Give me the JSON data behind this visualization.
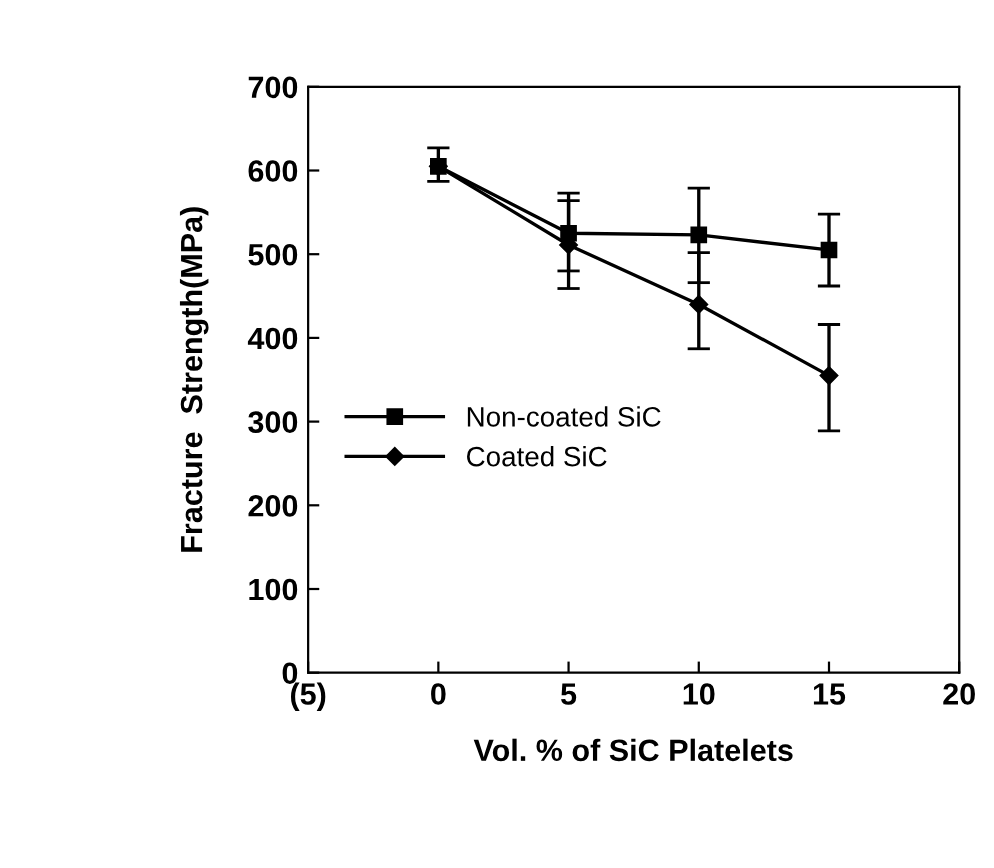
{
  "chart_data": {
    "type": "line",
    "xlabel": "Vol. % of SiC Platelets",
    "ylabel": "Fracture  Strength(MPa)",
    "x": [
      0,
      5,
      10,
      15
    ],
    "series": [
      {
        "name": "Non-coated SiC",
        "color": "#000000",
        "marker": "square",
        "values": [
          605,
          525,
          523,
          505
        ],
        "errors": [
          [
            587,
            627
          ],
          [
            480,
            573
          ],
          [
            466,
            579
          ],
          [
            462,
            548
          ]
        ]
      },
      {
        "name": "Coated SiC",
        "color": "#000000",
        "marker": "diamond",
        "values": [
          605,
          511,
          440,
          355
        ],
        "errors": [
          [
            587,
            627
          ],
          [
            459,
            564
          ],
          [
            387,
            502
          ],
          [
            289,
            416
          ]
        ]
      }
    ],
    "xlim": [
      -5,
      20
    ],
    "xticks": [
      {
        "value": -5,
        "label": "(5)"
      },
      0,
      5,
      10,
      15,
      20
    ],
    "ylim": [
      0,
      700
    ],
    "yticks": [
      0,
      100,
      200,
      300,
      400,
      500,
      600,
      700
    ],
    "grid": false,
    "legend": "bottom left",
    "line_style": "solid"
  }
}
